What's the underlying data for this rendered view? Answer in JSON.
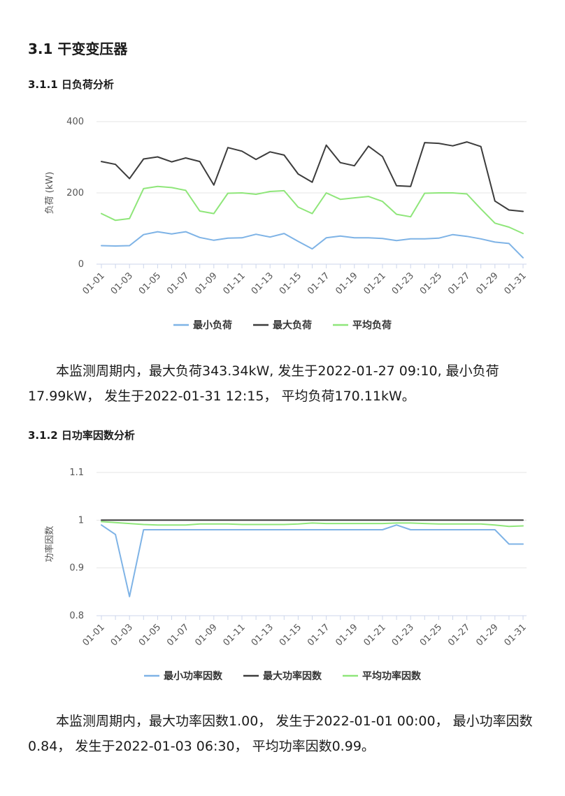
{
  "section_title": "3.1 干变变压器",
  "load_section": {
    "title": "3.1.1 日负荷分析",
    "summary": "本监测周期内，最大负荷343.34kW, 发生于2022-01-27 09:10, 最小负荷17.99kW， 发生于2022-01-31 12:15， 平均负荷170.11kW。"
  },
  "pf_section": {
    "title": "3.1.2 日功率因数分析",
    "summary": "本监测周期内，最大功率因数1.00， 发生于2022-01-01 00:00， 最小功率因数0.84， 发生于2022-01-03 06:30， 平均功率因数0.99。"
  },
  "colors": {
    "min": "#7eb3e6",
    "max": "#3c3c3c",
    "avg": "#8fe67a",
    "grid": "#e6e6e6",
    "axis": "#ccd6eb"
  },
  "chart_data": [
    {
      "type": "line",
      "title": "",
      "xlabel": "",
      "ylabel": "负荷 (kW)",
      "ylim": [
        0,
        400
      ],
      "yticks": [
        0,
        200,
        400
      ],
      "grid": true,
      "legend": "bottom-center",
      "categories": [
        "01-01",
        "01-02",
        "01-03",
        "01-04",
        "01-05",
        "01-06",
        "01-07",
        "01-08",
        "01-09",
        "01-10",
        "01-11",
        "01-12",
        "01-13",
        "01-14",
        "01-15",
        "01-16",
        "01-17",
        "01-18",
        "01-19",
        "01-20",
        "01-21",
        "01-22",
        "01-23",
        "01-24",
        "01-25",
        "01-26",
        "01-27",
        "01-28",
        "01-29",
        "01-30",
        "01-31"
      ],
      "xtick_labels": [
        "01-01",
        "01-03",
        "01-05",
        "01-07",
        "01-09",
        "01-11",
        "01-13",
        "01-15",
        "01-17",
        "01-19",
        "01-21",
        "01-23",
        "01-25",
        "01-27",
        "01-29",
        "01-31"
      ],
      "series": [
        {
          "name": "最小负荷",
          "color": "#7eb3e6",
          "values": [
            52,
            51,
            52,
            83,
            91,
            85,
            91,
            75,
            67,
            73,
            74,
            84,
            76,
            86,
            64,
            43,
            74,
            79,
            74,
            74,
            72,
            66,
            71,
            71,
            73,
            83,
            78,
            71,
            62,
            58,
            18
          ]
        },
        {
          "name": "最大负荷",
          "color": "#3c3c3c",
          "values": [
            288,
            280,
            240,
            295,
            301,
            287,
            298,
            288,
            222,
            327,
            317,
            294,
            315,
            306,
            253,
            230,
            334,
            285,
            276,
            331,
            302,
            220,
            218,
            341,
            339,
            332,
            343,
            330,
            177,
            152,
            148
          ]
        },
        {
          "name": "平均负荷",
          "color": "#8fe67a",
          "values": [
            142,
            123,
            128,
            212,
            218,
            215,
            207,
            149,
            142,
            199,
            200,
            196,
            204,
            206,
            160,
            142,
            200,
            182,
            186,
            190,
            176,
            140,
            133,
            199,
            200,
            200,
            197,
            155,
            115,
            104,
            86
          ]
        }
      ]
    },
    {
      "type": "line",
      "title": "",
      "xlabel": "",
      "ylabel": "功率因数",
      "ylim": [
        0.8,
        1.1
      ],
      "yticks": [
        0.8,
        0.9,
        1,
        1.1
      ],
      "ytick_labels": [
        "0.8",
        "0.9",
        "1",
        "1.1"
      ],
      "grid": true,
      "legend": "bottom-center",
      "categories": [
        "01-01",
        "01-02",
        "01-03",
        "01-04",
        "01-05",
        "01-06",
        "01-07",
        "01-08",
        "01-09",
        "01-10",
        "01-11",
        "01-12",
        "01-13",
        "01-14",
        "01-15",
        "01-16",
        "01-17",
        "01-18",
        "01-19",
        "01-20",
        "01-21",
        "01-22",
        "01-23",
        "01-24",
        "01-25",
        "01-26",
        "01-27",
        "01-28",
        "01-29",
        "01-30",
        "01-31"
      ],
      "xtick_labels": [
        "01-01",
        "01-03",
        "01-05",
        "01-07",
        "01-09",
        "01-11",
        "01-13",
        "01-15",
        "01-17",
        "01-19",
        "01-21",
        "01-23",
        "01-25",
        "01-27",
        "01-29",
        "01-31"
      ],
      "series": [
        {
          "name": "最小功率因数",
          "color": "#7eb3e6",
          "values": [
            0.99,
            0.97,
            0.84,
            0.98,
            0.98,
            0.98,
            0.98,
            0.98,
            0.98,
            0.98,
            0.98,
            0.98,
            0.98,
            0.98,
            0.98,
            0.98,
            0.98,
            0.98,
            0.98,
            0.98,
            0.98,
            0.99,
            0.98,
            0.98,
            0.98,
            0.98,
            0.98,
            0.98,
            0.98,
            0.95,
            0.95
          ]
        },
        {
          "name": "最大功率因数",
          "color": "#3c3c3c",
          "values": [
            1,
            1,
            1,
            1,
            1,
            1,
            1,
            1,
            1,
            1,
            1,
            1,
            1,
            1,
            1,
            1,
            1,
            1,
            1,
            1,
            1,
            1,
            1,
            1,
            1,
            1,
            1,
            1,
            1,
            1,
            1
          ]
        },
        {
          "name": "平均功率因数",
          "color": "#8fe67a",
          "values": [
            0.997,
            0.995,
            0.993,
            0.991,
            0.99,
            0.99,
            0.99,
            0.992,
            0.992,
            0.992,
            0.991,
            0.991,
            0.991,
            0.991,
            0.992,
            0.994,
            0.993,
            0.993,
            0.993,
            0.993,
            0.993,
            0.994,
            0.994,
            0.993,
            0.992,
            0.992,
            0.992,
            0.992,
            0.99,
            0.987,
            0.988
          ]
        }
      ]
    }
  ]
}
